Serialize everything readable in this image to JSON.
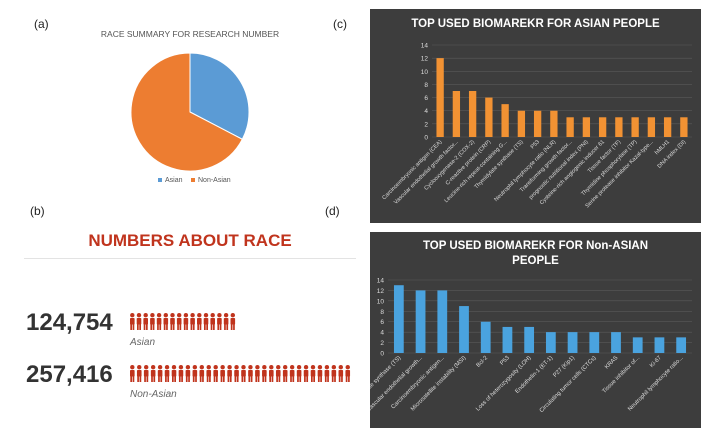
{
  "panels": {
    "a": "(a)",
    "b": "(b)",
    "c": "(c)",
    "d": "(d)"
  },
  "colors": {
    "asian": "#5b9bd5",
    "non_asian": "#ed7d31",
    "accent_red": "#c0341d",
    "dark_bg": "#3d3d3d",
    "orange_bar": "#f29233",
    "blue_bar": "#4aa3df"
  },
  "race_summary": {
    "headline": "NUMBERS ABOUT RACE",
    "asian_count": "124,754",
    "asian_label": "Asian",
    "asian_icons": 16,
    "non_asian_count": "257,416",
    "non_asian_label": "Non-Asian",
    "non_asian_icons": 32,
    "icon_name": "person-icon"
  },
  "chart_data": [
    {
      "id": "pie",
      "type": "pie",
      "title": "RACE SUMMARY FOR RESEARCH NUMBER",
      "labels": [
        "Asian",
        "Non-Asian"
      ],
      "values": [
        124754,
        257416
      ],
      "legend_placement": "bottom"
    },
    {
      "id": "asian_bars",
      "type": "bar",
      "title": "TOP USED BIOMAREKR  FOR ASIAN PEOPLE",
      "categories": [
        "Carcinoembryonic antigen (CEA)",
        "Vascular endothelial growth factor...",
        "Cyclooxygenase-2 (COX-2)",
        "C-reactive protein (CRP)",
        "Leucine-rich repeat-containing G...",
        "Thymidylate synthase (TS)",
        "P53",
        "Neutrophil lymphocyte ratio (NLR)",
        "Transforming growth factor...",
        "prognostic nutritional index (PNI)",
        "Cysteine-rich angiogenic inducer 61",
        "Tissue factor (TF)",
        "Thymidine phosphorylase (TP)",
        "Serine protease inhibitor Kazal-type...",
        "hMLH1",
        "DNA index (DI)"
      ],
      "values": [
        12,
        7,
        7,
        6,
        5,
        4,
        4,
        4,
        3,
        3,
        3,
        3,
        3,
        3,
        3,
        3
      ],
      "ylim": [
        0,
        14
      ],
      "yticks": [
        0,
        2,
        4,
        6,
        8,
        10,
        12,
        14
      ],
      "grid": true
    },
    {
      "id": "nonasian_bars",
      "type": "bar",
      "title": "TOP USED BIOMAREKR FOR Non-ASIAN PEOPLE",
      "categories": [
        "Thymidylate synthase (TS)",
        "Vascular endothelial growth...",
        "Carcinoembryonic antigen...",
        "Microsatellite instability (MSI)",
        "Bcl-2",
        "P53",
        "Loss of heterozygosity (LOH)",
        "Endothelin-1 (ET-1)",
        "P27 (Kip1)",
        "Circulating tumor cells (CTCs)",
        "KRAS",
        "Tissue inhibitor of...",
        "Ki-67",
        "Neutrophil lymphocyte ratio..."
      ],
      "values": [
        13,
        12,
        12,
        9,
        6,
        5,
        5,
        4,
        4,
        4,
        4,
        3,
        3,
        3
      ],
      "ylim": [
        0,
        14
      ],
      "yticks": [
        0,
        2,
        4,
        6,
        8,
        10,
        12,
        14
      ],
      "grid": true
    }
  ]
}
